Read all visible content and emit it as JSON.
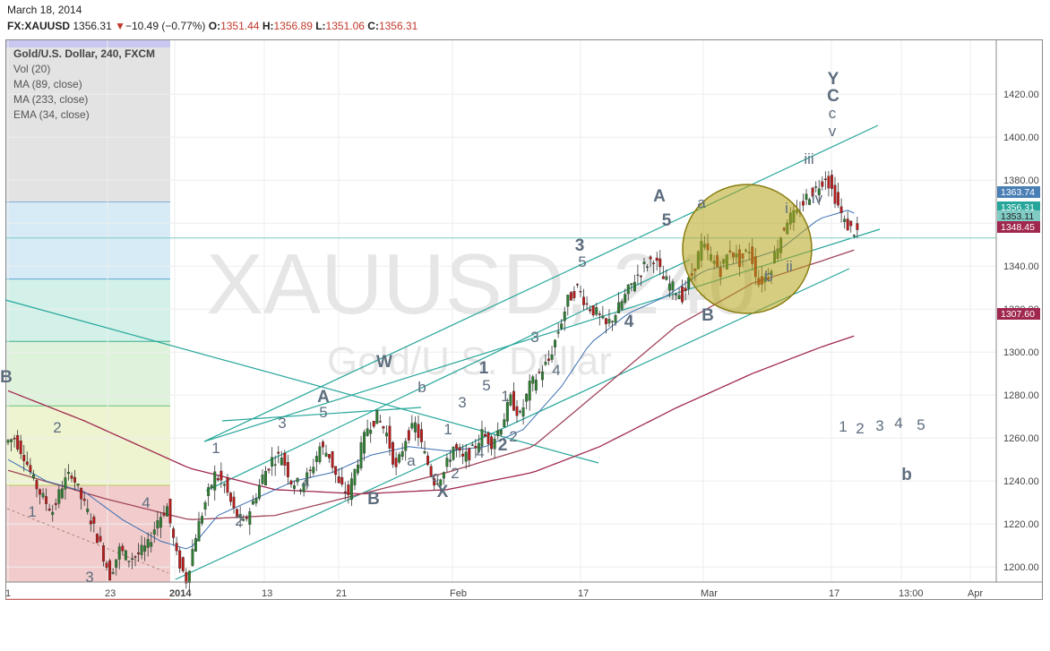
{
  "header": {
    "date": "March 18, 2014",
    "symbol": "FX:XAUUSD",
    "last": "1356.31",
    "change": "−10.49 (−0.77%)",
    "o_label": "O:",
    "o_val": "1351.44",
    "h_label": "H:",
    "h_val": "1356.89",
    "l_label": "L:",
    "l_val": "1351.06",
    "c_label": "C:",
    "c_val": "1356.31"
  },
  "legend": {
    "title": "Gold/U.S. Dollar, 240, FXCM",
    "items": [
      "Vol (20)",
      "MA (89, close)",
      "MA (233, close)",
      "EMA (34, close)"
    ]
  },
  "watermark": {
    "line1": "XAUUSD, 240",
    "line2": "Gold/U.S. Dollar"
  },
  "colors": {
    "up": "#2e7d32",
    "down": "#b71c1c",
    "ma89": "#a0455a",
    "ma233": "#a0284e",
    "ema34": "#3a6fb0",
    "channel": "#26a69a",
    "label": "#5d6d7e",
    "circle": "#b5a41a"
  },
  "chart_data": {
    "type": "candlestick",
    "title": "Gold/U.S. Dollar, 240, FXCM",
    "ylim": [
      1185,
      1430
    ],
    "y_ticks": [
      1200,
      1220,
      1240,
      1260,
      1280,
      1300,
      1320,
      1340,
      1360,
      1380,
      1400,
      1420
    ],
    "y_tick_labels": [
      "1200.00",
      "1220.00",
      "1240.00",
      "1260.00",
      "1280.00",
      "1300.00",
      "1320.00",
      "1340.00",
      "1360.00",
      "1380.00",
      "1400.00",
      "1420.00"
    ],
    "x_tick_labels": [
      "1",
      "23",
      "2014",
      "13",
      "21",
      "Feb",
      "17",
      "Mar",
      "17",
      "13:00",
      "Apr"
    ],
    "price_badges": [
      {
        "value": 1363.74,
        "label": "1363.74",
        "color": "#4a7fb5"
      },
      {
        "value": 1356.31,
        "label": "1356.31",
        "color": "#26a69a"
      },
      {
        "value": 1353.11,
        "label": "1353.11",
        "color": "#80cbc4"
      },
      {
        "value": 1348.45,
        "label": "1348.45",
        "color": "#a0284e"
      },
      {
        "value": 1307.6,
        "label": "1307.60",
        "color": "#a0284e"
      }
    ],
    "fib_levels": [
      1185,
      1238,
      1275,
      1305,
      1334,
      1370,
      1425
    ],
    "horizontal_line": 1353.11,
    "close_path": [
      [
        0,
        1258
      ],
      [
        3,
        1260
      ],
      [
        6,
        1252
      ],
      [
        9,
        1240
      ],
      [
        12,
        1232
      ],
      [
        15,
        1226
      ],
      [
        18,
        1238
      ],
      [
        21,
        1244
      ],
      [
        24,
        1232
      ],
      [
        27,
        1222
      ],
      [
        30,
        1210
      ],
      [
        33,
        1196
      ],
      [
        36,
        1208
      ],
      [
        39,
        1204
      ],
      [
        42,
        1206
      ],
      [
        45,
        1210
      ],
      [
        48,
        1222
      ],
      [
        51,
        1228
      ],
      [
        54,
        1205
      ],
      [
        57,
        1194
      ],
      [
        60,
        1215
      ],
      [
        63,
        1230
      ],
      [
        66,
        1243
      ],
      [
        69,
        1238
      ],
      [
        72,
        1226
      ],
      [
        75,
        1220
      ],
      [
        78,
        1230
      ],
      [
        81,
        1242
      ],
      [
        84,
        1250
      ],
      [
        87,
        1252
      ],
      [
        90,
        1240
      ],
      [
        93,
        1238
      ],
      [
        96,
        1244
      ],
      [
        99,
        1256
      ],
      [
        102,
        1252
      ],
      [
        105,
        1238
      ],
      [
        108,
        1234
      ],
      [
        111,
        1250
      ],
      [
        114,
        1265
      ],
      [
        117,
        1270
      ],
      [
        120,
        1262
      ],
      [
        123,
        1245
      ],
      [
        126,
        1260
      ],
      [
        129,
        1266
      ],
      [
        132,
        1252
      ],
      [
        135,
        1240
      ],
      [
        138,
        1244
      ],
      [
        141,
        1256
      ],
      [
        144,
        1250
      ],
      [
        147,
        1254
      ],
      [
        150,
        1262
      ],
      [
        153,
        1258
      ],
      [
        156,
        1266
      ],
      [
        159,
        1278
      ],
      [
        162,
        1270
      ],
      [
        165,
        1284
      ],
      [
        168,
        1290
      ],
      [
        171,
        1296
      ],
      [
        174,
        1310
      ],
      [
        177,
        1324
      ],
      [
        180,
        1330
      ],
      [
        183,
        1322
      ],
      [
        186,
        1318
      ],
      [
        189,
        1312
      ],
      [
        192,
        1318
      ],
      [
        195,
        1326
      ],
      [
        198,
        1334
      ],
      [
        201,
        1340
      ],
      [
        204,
        1344
      ],
      [
        207,
        1334
      ],
      [
        210,
        1330
      ],
      [
        213,
        1326
      ],
      [
        216,
        1336
      ],
      [
        219,
        1350
      ],
      [
        222,
        1344
      ],
      [
        225,
        1338
      ],
      [
        228,
        1348
      ],
      [
        231,
        1342
      ],
      [
        234,
        1348
      ],
      [
        237,
        1332
      ],
      [
        240,
        1336
      ],
      [
        243,
        1350
      ],
      [
        246,
        1362
      ],
      [
        249,
        1364
      ],
      [
        252,
        1372
      ],
      [
        255,
        1376
      ],
      [
        258,
        1382
      ],
      [
        261,
        1372
      ],
      [
        264,
        1360
      ],
      [
        267,
        1356
      ]
    ],
    "ema34_path": [
      [
        0,
        1250
      ],
      [
        12,
        1240
      ],
      [
        24,
        1235
      ],
      [
        36,
        1222
      ],
      [
        48,
        1212
      ],
      [
        57,
        1208
      ],
      [
        66,
        1224
      ],
      [
        78,
        1232
      ],
      [
        90,
        1240
      ],
      [
        102,
        1244
      ],
      [
        114,
        1252
      ],
      [
        126,
        1256
      ],
      [
        138,
        1254
      ],
      [
        150,
        1256
      ],
      [
        162,
        1264
      ],
      [
        174,
        1284
      ],
      [
        183,
        1304
      ],
      [
        195,
        1318
      ],
      [
        207,
        1326
      ],
      [
        219,
        1338
      ],
      [
        231,
        1342
      ],
      [
        243,
        1348
      ],
      [
        255,
        1362
      ],
      [
        264,
        1366
      ],
      [
        267,
        1364
      ]
    ],
    "ma89_path": [
      [
        0,
        1245
      ],
      [
        30,
        1232
      ],
      [
        57,
        1222
      ],
      [
        84,
        1224
      ],
      [
        111,
        1234
      ],
      [
        138,
        1244
      ],
      [
        165,
        1256
      ],
      [
        186,
        1282
      ],
      [
        210,
        1312
      ],
      [
        234,
        1332
      ],
      [
        255,
        1342
      ],
      [
        267,
        1348
      ]
    ],
    "ma233_path": [
      [
        0,
        1282
      ],
      [
        24,
        1268
      ],
      [
        57,
        1246
      ],
      [
        84,
        1236
      ],
      [
        111,
        1234
      ],
      [
        138,
        1236
      ],
      [
        165,
        1244
      ],
      [
        186,
        1256
      ],
      [
        210,
        1274
      ],
      [
        234,
        1290
      ],
      [
        255,
        1302
      ],
      [
        267,
        1308
      ]
    ]
  },
  "wave_labels": [
    {
      "text": "B",
      "x": 7,
      "y": 427,
      "bold": true
    },
    {
      "text": "1",
      "x": 36,
      "y": 577,
      "bold": false
    },
    {
      "text": "2",
      "x": 64,
      "y": 483,
      "bold": false
    },
    {
      "text": "3",
      "x": 100,
      "y": 650,
      "bold": false
    },
    {
      "text": "4",
      "x": 163,
      "y": 567,
      "bold": false
    },
    {
      "text": "1",
      "x": 241,
      "y": 506,
      "bold": false
    },
    {
      "text": "2",
      "x": 267,
      "y": 587,
      "bold": false
    },
    {
      "text": "3",
      "x": 315,
      "y": 478,
      "bold": false
    },
    {
      "text": "4",
      "x": 341,
      "y": 545,
      "bold": false
    },
    {
      "text": "A",
      "x": 361,
      "y": 449,
      "bold": true
    },
    {
      "text": "5",
      "x": 361,
      "y": 466,
      "bold": false
    },
    {
      "text": "B",
      "x": 417,
      "y": 563,
      "bold": true
    },
    {
      "text": "W",
      "x": 429,
      "y": 410,
      "bold": true
    },
    {
      "text": "b",
      "x": 471,
      "y": 438,
      "bold": false
    },
    {
      "text": "a",
      "x": 459,
      "y": 520,
      "bold": false
    },
    {
      "text": "c",
      "x": 486,
      "y": 538,
      "bold": false
    },
    {
      "text": "1",
      "x": 500,
      "y": 485,
      "bold": false
    },
    {
      "text": "X",
      "x": 494,
      "y": 555,
      "bold": true
    },
    {
      "text": "2",
      "x": 508,
      "y": 534,
      "bold": false
    },
    {
      "text": "3",
      "x": 516,
      "y": 455,
      "bold": false
    },
    {
      "text": "1",
      "x": 540,
      "y": 417,
      "bold": true
    },
    {
      "text": "5",
      "x": 543,
      "y": 436,
      "bold": false
    },
    {
      "text": "4",
      "x": 536,
      "y": 511,
      "bold": false
    },
    {
      "text": "1",
      "x": 564,
      "y": 448,
      "bold": false
    },
    {
      "text": "2",
      "x": 561,
      "y": 503,
      "bold": true
    },
    {
      "text": "2",
      "x": 573,
      "y": 493,
      "bold": false
    },
    {
      "text": "3",
      "x": 597,
      "y": 382,
      "bold": false
    },
    {
      "text": "4",
      "x": 621,
      "y": 419,
      "bold": false
    },
    {
      "text": "3",
      "x": 647,
      "y": 280,
      "bold": true
    },
    {
      "text": "5",
      "x": 650,
      "y": 298,
      "bold": false
    },
    {
      "text": "4",
      "x": 702,
      "y": 365,
      "bold": true
    },
    {
      "text": "A",
      "x": 736,
      "y": 225,
      "bold": true
    },
    {
      "text": "5",
      "x": 744,
      "y": 252,
      "bold": true
    },
    {
      "text": "a",
      "x": 783,
      "y": 232,
      "bold": false
    },
    {
      "text": "B",
      "x": 790,
      "y": 358,
      "bold": true
    },
    {
      "text": "b",
      "x": 858,
      "y": 314,
      "bold": false
    },
    {
      "text": "i",
      "x": 878,
      "y": 238,
      "bold": false
    },
    {
      "text": "ii",
      "x": 881,
      "y": 303,
      "bold": false
    },
    {
      "text": "iii",
      "x": 903,
      "y": 183,
      "bold": false
    },
    {
      "text": "iv",
      "x": 912,
      "y": 227,
      "bold": false
    },
    {
      "text": "v",
      "x": 929,
      "y": 152,
      "bold": false
    },
    {
      "text": "c",
      "x": 929,
      "y": 132,
      "bold": false
    },
    {
      "text": "C",
      "x": 930,
      "y": 113,
      "bold": true
    },
    {
      "text": "Y",
      "x": 930,
      "y": 94,
      "bold": true
    },
    {
      "text": "1",
      "x": 941,
      "y": 482,
      "bold": false
    },
    {
      "text": "2",
      "x": 960,
      "y": 484,
      "bold": false
    },
    {
      "text": "3",
      "x": 982,
      "y": 481,
      "bold": false
    },
    {
      "text": "4",
      "x": 1003,
      "y": 478,
      "bold": false
    },
    {
      "text": "5",
      "x": 1028,
      "y": 480,
      "bold": false
    },
    {
      "text": "b",
      "x": 1012,
      "y": 536,
      "bold": true
    }
  ]
}
